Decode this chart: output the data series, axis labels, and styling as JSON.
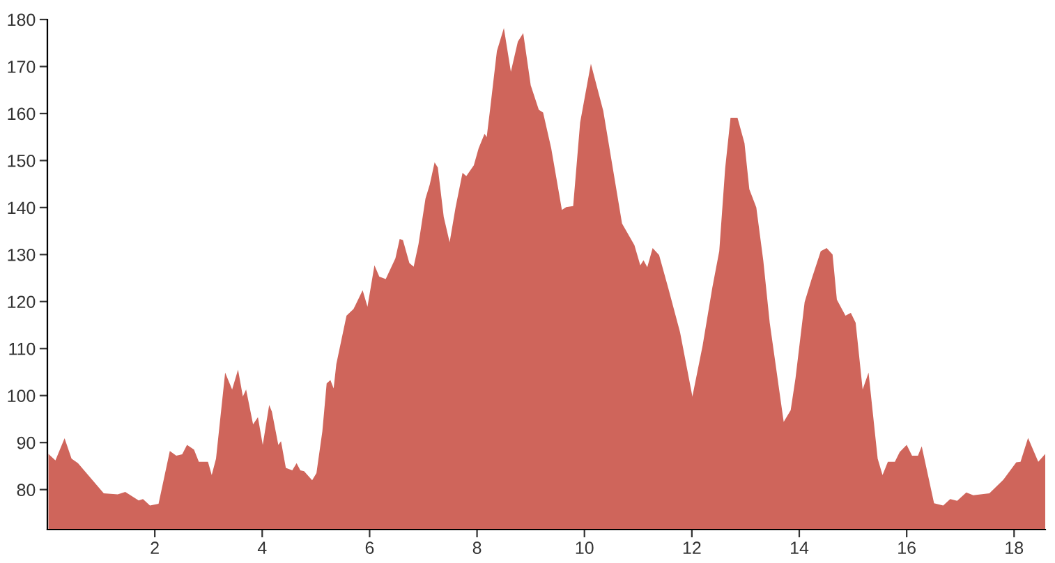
{
  "chart_data": {
    "type": "area",
    "color": "#cf655b",
    "x": [
      0.02,
      0.15,
      0.32,
      0.45,
      0.57,
      1.05,
      1.31,
      1.45,
      1.7,
      1.78,
      1.91,
      2.07,
      2.28,
      2.4,
      2.51,
      2.6,
      2.73,
      2.82,
      2.99,
      3.06,
      3.14,
      3.31,
      3.44,
      3.55,
      3.64,
      3.7,
      3.83,
      3.92,
      4.01,
      4.13,
      4.18,
      4.3,
      4.35,
      4.44,
      4.56,
      4.64,
      4.71,
      4.78,
      4.93,
      5.01,
      5.12,
      5.2,
      5.27,
      5.33,
      5.38,
      5.47,
      5.57,
      5.7,
      5.87,
      5.96,
      6.09,
      6.18,
      6.3,
      6.48,
      6.56,
      6.62,
      6.74,
      6.82,
      6.91,
      7.04,
      7.12,
      7.21,
      7.27,
      7.38,
      7.49,
      7.6,
      7.73,
      7.8,
      7.94,
      8.03,
      8.14,
      8.18,
      8.24,
      8.37,
      8.5,
      8.63,
      8.76,
      8.86,
      9.0,
      9.15,
      9.23,
      9.38,
      9.58,
      9.66,
      9.79,
      9.92,
      10.12,
      10.35,
      10.7,
      10.93,
      11.04,
      11.1,
      11.17,
      11.27,
      11.39,
      11.56,
      11.78,
      12.01,
      12.2,
      12.38,
      12.51,
      12.62,
      12.72,
      12.85,
      12.98,
      13.07,
      13.2,
      13.33,
      13.45,
      13.71,
      13.84,
      13.93,
      14.1,
      14.23,
      14.4,
      14.51,
      14.62,
      14.7,
      14.86,
      14.96,
      15.05,
      15.18,
      15.29,
      15.46,
      15.55,
      15.65,
      15.78,
      15.87,
      16.0,
      16.1,
      16.21,
      16.28,
      16.51,
      16.68,
      16.81,
      16.94,
      17.11,
      17.24,
      17.54,
      17.8,
      18.04,
      18.12,
      18.26,
      18.45,
      18.58
    ],
    "values": [
      87.6,
      86.2,
      90.9,
      86.6,
      85.6,
      79.2,
      79,
      79.5,
      77.7,
      78,
      76.6,
      77,
      88.2,
      87.2,
      87.5,
      89.5,
      88.5,
      85.9,
      85.9,
      83.1,
      86.6,
      104.9,
      101.3,
      105.5,
      99.8,
      101.3,
      93.9,
      95.4,
      89.5,
      98,
      96.6,
      89.5,
      90.3,
      84.6,
      84.1,
      85.6,
      84.1,
      83.9,
      82,
      83.5,
      92.4,
      102.6,
      103.3,
      101.5,
      106.7,
      111.6,
      117,
      118.4,
      122.4,
      118.9,
      127.7,
      125.3,
      124.8,
      129.2,
      133.3,
      133.1,
      128.2,
      127.4,
      132.2,
      141.9,
      144.9,
      149.6,
      148.5,
      138,
      132.6,
      140,
      147.4,
      146.7,
      149,
      152.6,
      155.7,
      155,
      160.6,
      173.3,
      178.2,
      168.9,
      175.3,
      177.1,
      166,
      160.8,
      160.2,
      152.7,
      139.5,
      140.1,
      140.3,
      158.1,
      170.6,
      160.6,
      136.6,
      132,
      127.7,
      128.8,
      127.3,
      131.4,
      129.9,
      122.9,
      113.5,
      99.8,
      110.6,
      122.9,
      130.7,
      148.3,
      159.1,
      159.1,
      153.7,
      143.9,
      140,
      128.7,
      115.5,
      94.4,
      96.9,
      103.7,
      119.9,
      124.8,
      130.7,
      131.4,
      130,
      120.4,
      117,
      117.6,
      115.5,
      101.3,
      104.9,
      86.6,
      83.1,
      85.9,
      85.9,
      88,
      89.5,
      87.2,
      87.2,
      89.2,
      77.1,
      76.6,
      78,
      77.6,
      79.4,
      78.8,
      79.2,
      82.1,
      85.8,
      85.9,
      91,
      85.9,
      87.6
    ],
    "xlim": [
      0,
      18.58
    ],
    "ylim": [
      71.5,
      180
    ],
    "xticks": [
      2,
      4,
      6,
      8,
      10,
      12,
      14,
      16,
      18
    ],
    "yticks": [
      80,
      90,
      100,
      110,
      120,
      130,
      140,
      150,
      160,
      170,
      180
    ],
    "grid": false,
    "legend": false
  }
}
